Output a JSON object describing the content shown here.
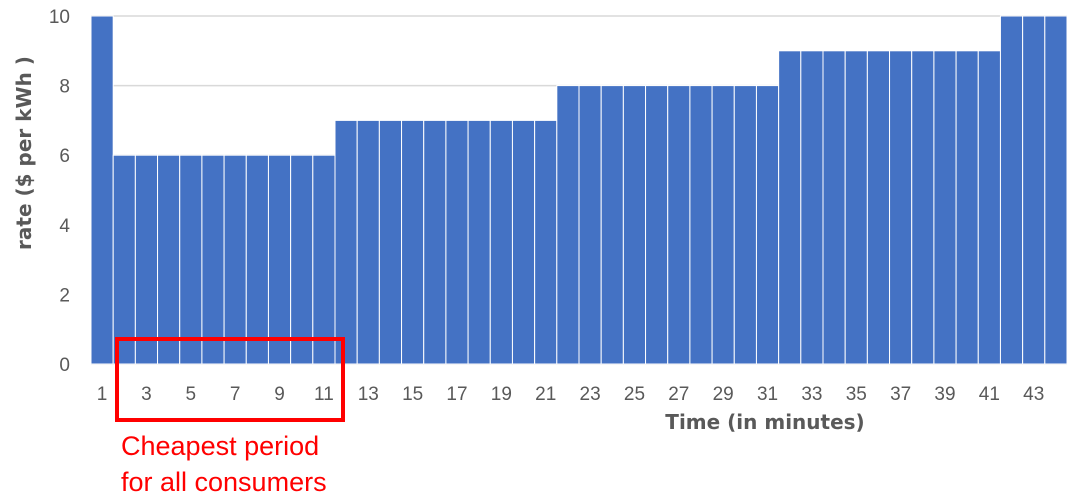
{
  "chart_data": {
    "type": "bar",
    "categories": [
      "1",
      "2",
      "3",
      "4",
      "5",
      "6",
      "7",
      "8",
      "9",
      "10",
      "11",
      "12",
      "13",
      "14",
      "15",
      "16",
      "17",
      "18",
      "19",
      "20",
      "21",
      "22",
      "23",
      "24",
      "25",
      "26",
      "27",
      "28",
      "29",
      "30",
      "31",
      "32",
      "33",
      "34",
      "35",
      "36",
      "37",
      "38",
      "39",
      "40",
      "41",
      "42",
      "43",
      "44"
    ],
    "x_tick_labels": [
      "1",
      "3",
      "5",
      "7",
      "9",
      "11",
      "13",
      "15",
      "17",
      "19",
      "21",
      "23",
      "25",
      "27",
      "29",
      "31",
      "33",
      "35",
      "37",
      "39",
      "41",
      "43"
    ],
    "values": [
      10,
      6,
      6,
      6,
      6,
      6,
      6,
      6,
      6,
      6,
      6,
      7,
      7,
      7,
      7,
      7,
      7,
      7,
      7,
      7,
      7,
      8,
      8,
      8,
      8,
      8,
      8,
      8,
      8,
      8,
      8,
      9,
      9,
      9,
      9,
      9,
      9,
      9,
      9,
      9,
      9,
      10,
      10,
      10
    ],
    "xlabel": "Time (in minutes)",
    "ylabel": "rate ($ per kWh )",
    "ylim": [
      0,
      10
    ],
    "y_ticks": [
      "0",
      "2",
      "4",
      "6",
      "8",
      "10"
    ],
    "grid": true,
    "bar_color": "#4472c4",
    "gridline_color": "#d9d9d9",
    "annotation": {
      "lines": [
        "Cheapest period",
        "for all consumers"
      ],
      "color": "#ff0000",
      "highlights_categories": [
        "2",
        "11"
      ]
    }
  }
}
